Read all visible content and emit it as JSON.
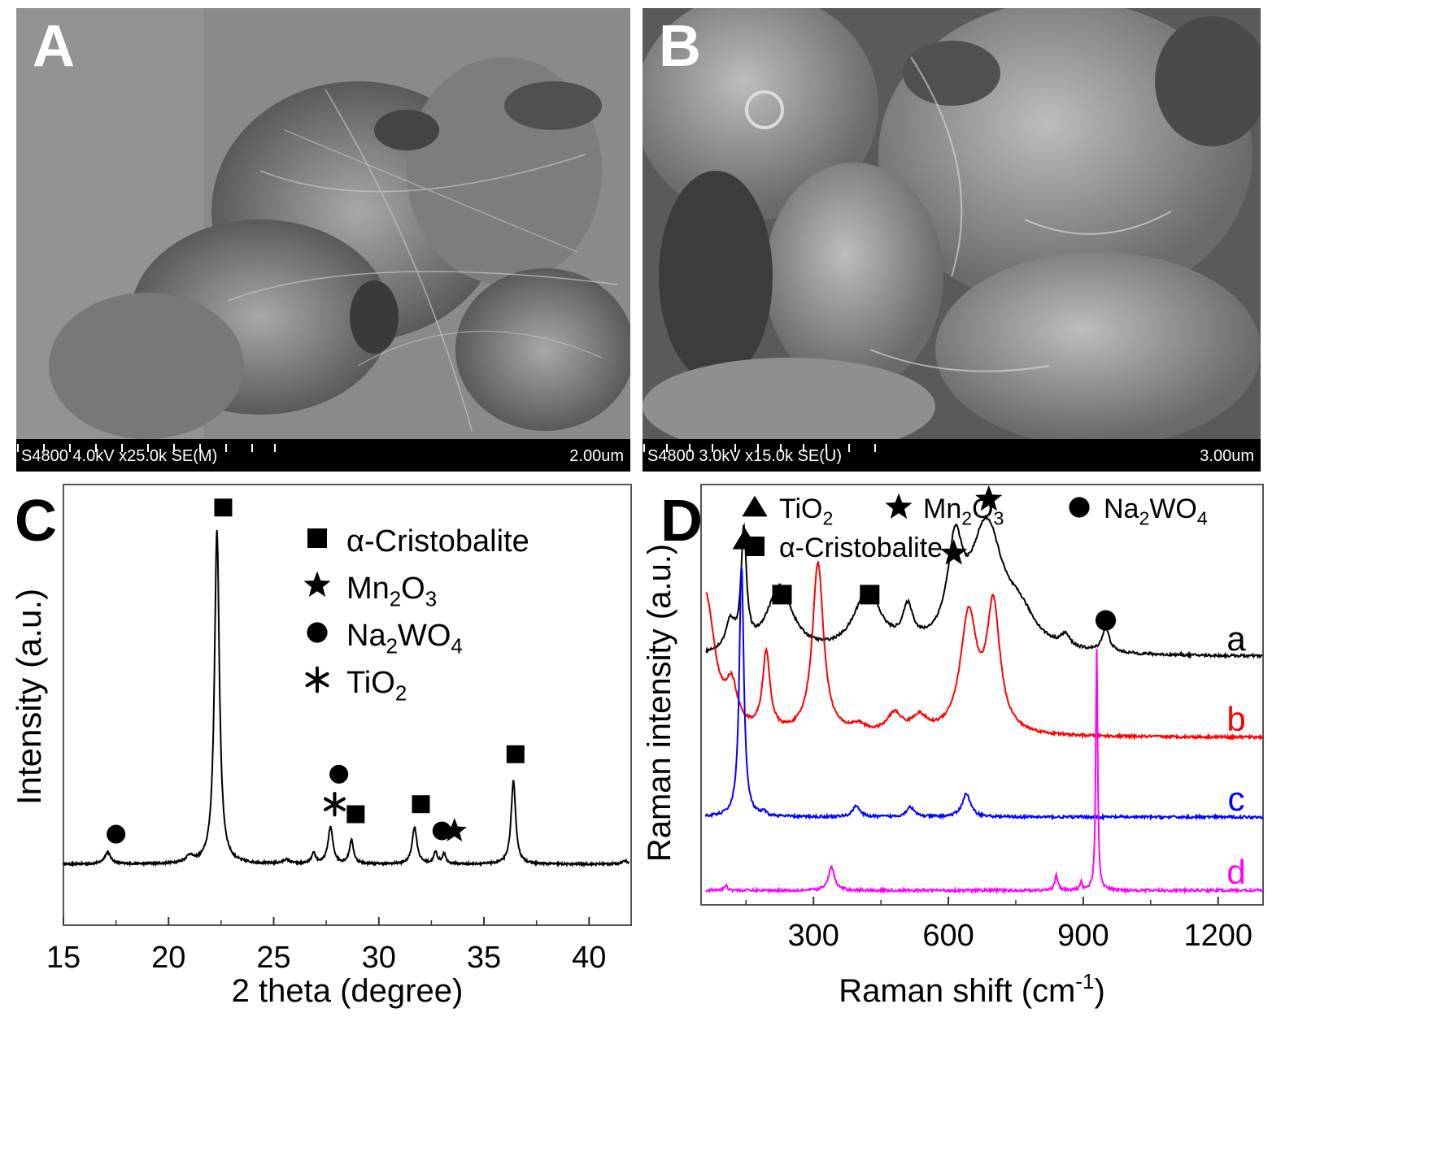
{
  "panels": {
    "A": {
      "letter": "A",
      "info": "S4800 4.0kV x25.0k SE(M)",
      "scale": "2.00um"
    },
    "B": {
      "letter": "B",
      "info": "S4800 3.0kV x15.0k SE(U)",
      "scale": "3.00um"
    },
    "C": {
      "letter": "C"
    },
    "D": {
      "letter": "D"
    }
  },
  "chart_data": [
    {
      "panel": "C",
      "type": "line",
      "title": "",
      "xlabel": "2 theta (degree)",
      "ylabel": "Intensity (a.u.)",
      "xlim": [
        15,
        42
      ],
      "xticks": [
        15,
        20,
        25,
        30,
        35,
        40
      ],
      "baseline": 0,
      "peaks": [
        {
          "x": 17.1,
          "h": 0.035,
          "w": 0.18
        },
        {
          "x": 21.0,
          "h": 0.02,
          "w": 0.2
        },
        {
          "x": 22.3,
          "h": 1.0,
          "w": 0.14
        },
        {
          "x": 25.6,
          "h": 0.012,
          "w": 0.2
        },
        {
          "x": 26.9,
          "h": 0.03,
          "w": 0.12
        },
        {
          "x": 27.7,
          "h": 0.11,
          "w": 0.14
        },
        {
          "x": 28.7,
          "h": 0.07,
          "w": 0.12
        },
        {
          "x": 31.7,
          "h": 0.11,
          "w": 0.14
        },
        {
          "x": 32.7,
          "h": 0.035,
          "w": 0.1
        },
        {
          "x": 33.1,
          "h": 0.03,
          "w": 0.1
        },
        {
          "x": 36.4,
          "h": 0.25,
          "w": 0.13
        },
        {
          "x": 41.7,
          "h": 0.01,
          "w": 0.2
        }
      ],
      "markers": [
        {
          "x": 17.5,
          "y": 0.09,
          "symbol": "circle"
        },
        {
          "x": 22.6,
          "y": 1.07,
          "symbol": "square"
        },
        {
          "x": 27.9,
          "y": 0.18,
          "symbol": "asterisk"
        },
        {
          "x": 28.1,
          "y": 0.27,
          "symbol": "circle"
        },
        {
          "x": 28.9,
          "y": 0.15,
          "symbol": "square"
        },
        {
          "x": 32.0,
          "y": 0.18,
          "symbol": "square"
        },
        {
          "x": 33.0,
          "y": 0.1,
          "symbol": "circle"
        },
        {
          "x": 33.6,
          "y": 0.1,
          "symbol": "star"
        },
        {
          "x": 36.5,
          "y": 0.33,
          "symbol": "square"
        }
      ],
      "legend": [
        {
          "symbol": "square",
          "label": "α-Cristobalite"
        },
        {
          "symbol": "star",
          "label": "Mn",
          "sub1": "2",
          "mid": "O",
          "sub2": "3"
        },
        {
          "symbol": "circle",
          "label": "Na",
          "sub1": "2",
          "mid": "WO",
          "sub2": "4"
        },
        {
          "symbol": "asterisk",
          "label": "TiO",
          "sub1": "2"
        }
      ],
      "legend_position": "top-right"
    },
    {
      "panel": "D",
      "type": "line",
      "title": "",
      "xlabel": "Raman shift (cm",
      "xlabel_sup": "-1",
      "xlabel_end": ")",
      "ylabel": "Raman intensity (a.u.)",
      "xlim": [
        50,
        1300
      ],
      "xticks": [
        300,
        600,
        900,
        1200
      ],
      "ylim": [
        0,
        5.8
      ],
      "series": [
        {
          "name": "a",
          "color": "#000000",
          "baseline": 3.05,
          "peaks": [
            {
              "x": 115,
              "h": 0.35,
              "w": 12
            },
            {
              "x": 145,
              "h": 1.5,
              "w": 7
            },
            {
              "x": 225,
              "h": 0.85,
              "w": 35
            },
            {
              "x": 420,
              "h": 0.78,
              "w": 35
            },
            {
              "x": 510,
              "h": 0.45,
              "w": 14
            },
            {
              "x": 615,
              "h": 1.15,
              "w": 20
            },
            {
              "x": 685,
              "h": 1.6,
              "w": 45
            },
            {
              "x": 760,
              "h": 0.35,
              "w": 40
            },
            {
              "x": 860,
              "h": 0.15,
              "w": 12
            },
            {
              "x": 950,
              "h": 0.3,
              "w": 10
            }
          ]
        },
        {
          "name": "b",
          "color": "#ff0000",
          "baseline": 2.02,
          "peaks": [
            {
              "x": 60,
              "h": 1.8,
              "w": 25
            },
            {
              "x": 118,
              "h": 0.5,
              "w": 15
            },
            {
              "x": 195,
              "h": 1.0,
              "w": 10
            },
            {
              "x": 310,
              "h": 2.2,
              "w": 15
            },
            {
              "x": 400,
              "h": 0.1,
              "w": 20
            },
            {
              "x": 480,
              "h": 0.25,
              "w": 20
            },
            {
              "x": 535,
              "h": 0.2,
              "w": 20
            },
            {
              "x": 645,
              "h": 1.5,
              "w": 22
            },
            {
              "x": 700,
              "h": 1.6,
              "w": 18
            }
          ]
        },
        {
          "name": "c",
          "color": "#0000ff",
          "baseline": 1.0,
          "peaks": [
            {
              "x": 140,
              "h": 3.25,
              "w": 6
            },
            {
              "x": 190,
              "h": 0.05,
              "w": 5
            },
            {
              "x": 395,
              "h": 0.15,
              "w": 9
            },
            {
              "x": 515,
              "h": 0.13,
              "w": 10
            },
            {
              "x": 640,
              "h": 0.3,
              "w": 11
            }
          ]
        },
        {
          "name": "d",
          "color": "#ff00ff",
          "baseline": 0.06,
          "peaks": [
            {
              "x": 105,
              "h": 0.06,
              "w": 5
            },
            {
              "x": 340,
              "h": 0.3,
              "w": 8
            },
            {
              "x": 840,
              "h": 0.2,
              "w": 4
            },
            {
              "x": 895,
              "h": 0.1,
              "w": 3
            },
            {
              "x": 930,
              "h": 3.1,
              "w": 2.5
            }
          ]
        }
      ],
      "markers": [
        {
          "x": 148,
          "y": 4.55,
          "symbol": "triangle"
        },
        {
          "x": 230,
          "y": 3.85,
          "symbol": "square"
        },
        {
          "x": 425,
          "y": 3.85,
          "symbol": "square"
        },
        {
          "x": 612,
          "y": 4.38,
          "symbol": "star"
        },
        {
          "x": 690,
          "y": 5.07,
          "symbol": "star"
        },
        {
          "x": 950,
          "y": 3.52,
          "symbol": "circle"
        }
      ],
      "legend": [
        {
          "symbol": "triangle",
          "label": "TiO",
          "sub1": "2"
        },
        {
          "symbol": "star",
          "label": "Mn",
          "sub1": "2",
          "mid": "O",
          "sub2": "3"
        },
        {
          "symbol": "circle",
          "label": "Na",
          "sub1": "2",
          "mid": "WO",
          "sub2": "4"
        },
        {
          "symbol": "square",
          "label": "α-Cristobalite"
        }
      ],
      "legend_position": "top"
    }
  ]
}
